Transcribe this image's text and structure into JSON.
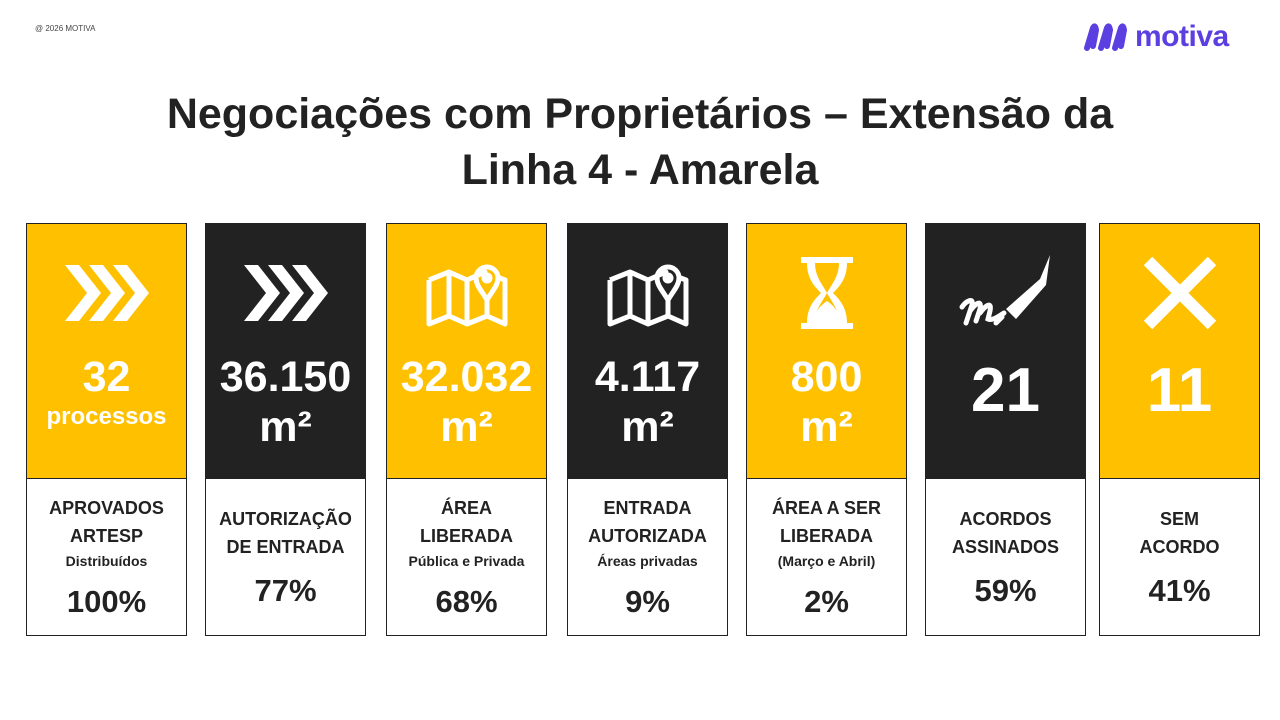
{
  "copyright": "@ 2026 MOTIVA",
  "logo": {
    "text": "motiva",
    "color": "#5b3fe0"
  },
  "title": {
    "line1": "Negociações com Proprietários – Extensão da",
    "line2": "Linha 4 - Amarela"
  },
  "colors": {
    "yellow": "#FFC000",
    "black": "#222222"
  },
  "cards": [
    {
      "theme": "yellow",
      "icon": "chevrons-right-icon",
      "value": "32",
      "unit": "processos",
      "label": "APROVADOS\nARTESP",
      "sublabel": "Distribuídos",
      "percent": "100%"
    },
    {
      "theme": "black",
      "icon": "chevrons-right-icon",
      "value": "36.150",
      "unit": "m²",
      "label": "AUTORIZAÇÃO\nDE ENTRADA",
      "sublabel": "",
      "percent": "77%"
    },
    {
      "theme": "yellow",
      "icon": "map-pin-icon",
      "value": "32.032",
      "unit": "m²",
      "label": "ÁREA\nLIBERADA",
      "sublabel": "Pública e Privada",
      "percent": "68%"
    },
    {
      "theme": "black",
      "icon": "map-pin-icon",
      "value": "4.117",
      "unit": "m²",
      "label": "ENTRADA\nAUTORIZADA",
      "sublabel": "Áreas privadas",
      "percent": "9%"
    },
    {
      "theme": "yellow",
      "icon": "hourglass-icon",
      "value": "800",
      "unit": "m²",
      "label": "ÁREA A SER\nLIBERADA",
      "sublabel": "(Março e Abril)",
      "percent": "2%"
    },
    {
      "theme": "black",
      "icon": "signature-pen-icon",
      "value": "21",
      "unit": "",
      "label": "ACORDOS\nASSINADOS",
      "sublabel": "",
      "percent": "59%"
    },
    {
      "theme": "yellow",
      "icon": "x-icon",
      "value": "11",
      "unit": "",
      "label": "SEM\nACORDO",
      "sublabel": "",
      "percent": "41%"
    }
  ]
}
